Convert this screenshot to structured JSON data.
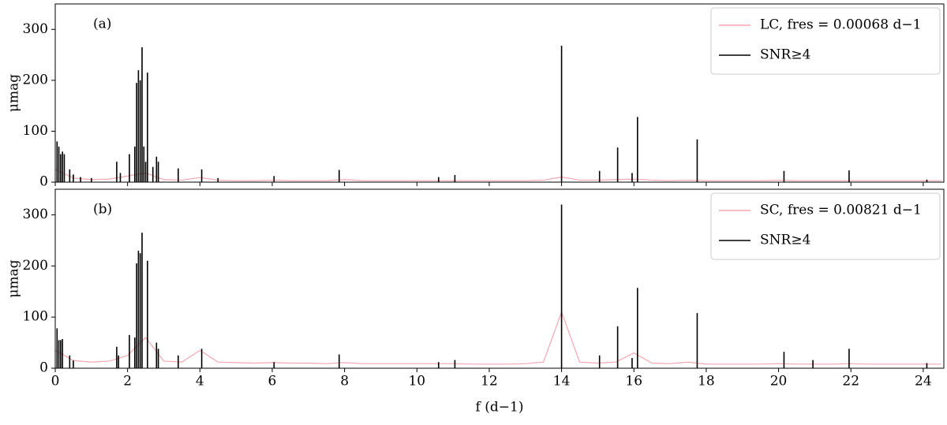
{
  "chart_data": [
    {
      "type": "line",
      "annotation": "(a)",
      "ylabel": "μmag",
      "xlim": [
        0,
        24.57
      ],
      "ylim": [
        0,
        350
      ],
      "xticks": [
        0,
        2,
        4,
        6,
        8,
        10,
        12,
        14,
        16,
        18,
        20,
        22,
        24
      ],
      "yticks": [
        0,
        100,
        200,
        300
      ],
      "legend": "upper right",
      "series": [
        {
          "name": "LC, fres = 0.00068 d−1",
          "color": "#f4a6b0",
          "style": "line",
          "x": [
            0,
            0.5,
            1,
            1.5,
            2,
            2.5,
            3,
            3.5,
            4,
            4.5,
            5,
            5.5,
            6,
            6.5,
            7,
            7.5,
            8,
            8.5,
            9,
            9.5,
            10,
            10.5,
            11,
            11.5,
            12,
            12.5,
            13,
            13.5,
            14,
            14.5,
            15,
            15.5,
            16,
            16.5,
            17,
            17.5,
            18,
            18.5,
            19,
            19.5,
            20,
            20.5,
            21,
            21.5,
            22,
            22.5,
            23,
            23.5,
            24,
            24.5
          ],
          "values": [
            25,
            8,
            5,
            6,
            12,
            18,
            5,
            4,
            9,
            4,
            3,
            3,
            4,
            3,
            3,
            3,
            5,
            3,
            3,
            3,
            3,
            3,
            3,
            3,
            3,
            3,
            3,
            4,
            10,
            4,
            4,
            5,
            6,
            4,
            3,
            4,
            3,
            3,
            3,
            3,
            4,
            3,
            3,
            3,
            3,
            3,
            3,
            3,
            3,
            3
          ]
        },
        {
          "name": "SNR≥4",
          "color": "#000000",
          "style": "stem",
          "x": [
            0.05,
            0.1,
            0.15,
            0.2,
            0.25,
            0.4,
            0.5,
            0.7,
            1.0,
            1.7,
            1.8,
            2.05,
            2.2,
            2.25,
            2.3,
            2.35,
            2.4,
            2.45,
            2.5,
            2.55,
            2.7,
            2.8,
            2.85,
            3.4,
            4.05,
            4.5,
            6.05,
            7.85,
            10.6,
            11.05,
            14.0,
            15.05,
            15.55,
            15.95,
            16.1,
            17.75,
            20.15,
            21.95,
            24.1
          ],
          "values": [
            80,
            70,
            55,
            60,
            55,
            25,
            15,
            10,
            8,
            40,
            18,
            55,
            70,
            195,
            220,
            200,
            265,
            70,
            40,
            215,
            30,
            50,
            40,
            27,
            25,
            8,
            12,
            24,
            10,
            14,
            268,
            22,
            68,
            18,
            128,
            84,
            22,
            23,
            5
          ]
        }
      ]
    },
    {
      "type": "line",
      "annotation": "(b)",
      "ylabel": "μmag",
      "xlabel": "f (d−1)",
      "xlim": [
        0,
        24.57
      ],
      "ylim": [
        0,
        350
      ],
      "xticks": [
        0,
        2,
        4,
        6,
        8,
        10,
        12,
        14,
        16,
        18,
        20,
        22,
        24
      ],
      "yticks": [
        0,
        100,
        200,
        300
      ],
      "legend": "upper right",
      "series": [
        {
          "name": "SC, fres = 0.00821 d−1",
          "color": "#f4a6b0",
          "style": "line",
          "x": [
            0,
            0.5,
            1,
            1.5,
            2,
            2.5,
            3,
            3.5,
            4,
            4.5,
            5,
            5.5,
            6,
            6.5,
            7,
            7.5,
            8,
            8.5,
            9,
            9.5,
            10,
            10.5,
            11,
            11.5,
            12,
            12.5,
            13,
            13.5,
            14,
            14.5,
            15,
            15.5,
            16,
            16.5,
            17,
            17.5,
            18,
            18.5,
            19,
            19.5,
            20,
            20.5,
            21,
            21.5,
            22,
            22.5,
            23,
            23.5,
            24,
            24.5
          ],
          "values": [
            35,
            15,
            12,
            14,
            25,
            60,
            14,
            12,
            35,
            12,
            11,
            10,
            11,
            10,
            10,
            9,
            11,
            9,
            9,
            9,
            9,
            9,
            9,
            8,
            8,
            8,
            9,
            12,
            110,
            12,
            10,
            12,
            30,
            10,
            9,
            12,
            8,
            8,
            8,
            8,
            9,
            8,
            8,
            8,
            9,
            8,
            8,
            8,
            8,
            8
          ]
        },
        {
          "name": "SNR≥4",
          "color": "#000000",
          "style": "stem",
          "x": [
            0.05,
            0.1,
            0.15,
            0.2,
            0.4,
            0.5,
            1.7,
            1.75,
            2.05,
            2.2,
            2.25,
            2.3,
            2.35,
            2.4,
            2.55,
            2.8,
            2.85,
            3.4,
            4.05,
            6.05,
            7.85,
            10.6,
            11.05,
            14.0,
            15.05,
            15.55,
            15.95,
            16.1,
            17.75,
            20.15,
            20.95,
            21.95,
            24.1
          ],
          "values": [
            78,
            55,
            55,
            57,
            25,
            15,
            42,
            25,
            65,
            60,
            205,
            230,
            225,
            265,
            210,
            50,
            38,
            25,
            38,
            12,
            27,
            12,
            16,
            320,
            25,
            82,
            20,
            157,
            108,
            32,
            16,
            38,
            10
          ]
        }
      ]
    }
  ]
}
